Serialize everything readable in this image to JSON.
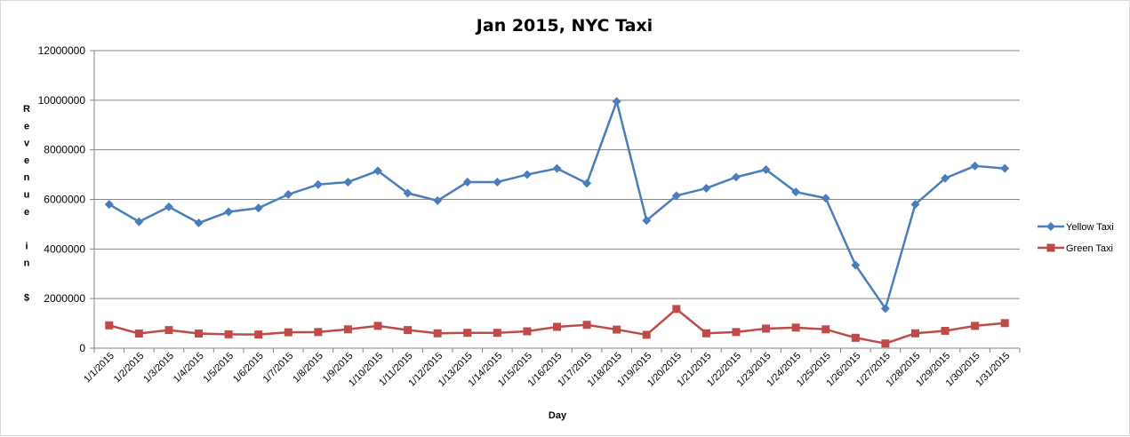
{
  "chart_data": {
    "type": "line",
    "title": "Jan 2015, NYC Taxi",
    "xlabel": "Day",
    "ylabel_letters": [
      "R",
      "e",
      "v",
      "e",
      "n",
      "u",
      "e",
      "",
      "i",
      "n",
      "",
      "$"
    ],
    "ylim": [
      0,
      12000000
    ],
    "yticks": [
      "0",
      "2000000",
      "4000000",
      "6000000",
      "8000000",
      "10000000",
      "12000000"
    ],
    "grid": true,
    "legend": "right",
    "categories": [
      "1/1/2015",
      "1/2/2015",
      "1/3/2015",
      "1/4/2015",
      "1/5/2015",
      "1/6/2015",
      "1/7/2015",
      "1/8/2015",
      "1/9/2015",
      "1/10/2015",
      "1/11/2015",
      "1/12/2015",
      "1/13/2015",
      "1/14/2015",
      "1/15/2015",
      "1/16/2015",
      "1/17/2015",
      "1/18/2015",
      "1/19/2015",
      "1/20/2015",
      "1/21/2015",
      "1/22/2015",
      "1/23/2015",
      "1/24/2015",
      "1/25/2015",
      "1/26/2015",
      "1/27/2015",
      "1/28/2015",
      "1/29/2015",
      "1/30/2015",
      "1/31/2015"
    ],
    "series": [
      {
        "name": "Yellow Taxi",
        "color": "#4a7ebb",
        "marker": "diamond",
        "values": [
          5800000,
          5100000,
          5700000,
          5050000,
          5500000,
          5650000,
          6200000,
          6600000,
          6700000,
          7150000,
          6250000,
          5950000,
          6700000,
          6700000,
          7000000,
          7250000,
          6650000,
          9950000,
          5150000,
          6150000,
          6450000,
          6900000,
          7200000,
          6300000,
          6050000,
          3350000,
          1600000,
          5800000,
          6850000,
          7350000,
          7250000
        ]
      },
      {
        "name": "Green Taxi",
        "color": "#be4b48",
        "marker": "square",
        "values": [
          920000,
          590000,
          730000,
          590000,
          560000,
          550000,
          640000,
          650000,
          760000,
          900000,
          730000,
          600000,
          620000,
          620000,
          680000,
          860000,
          940000,
          750000,
          540000,
          1580000,
          600000,
          650000,
          790000,
          830000,
          760000,
          420000,
          190000,
          600000,
          700000,
          900000,
          1010000
        ]
      }
    ]
  }
}
